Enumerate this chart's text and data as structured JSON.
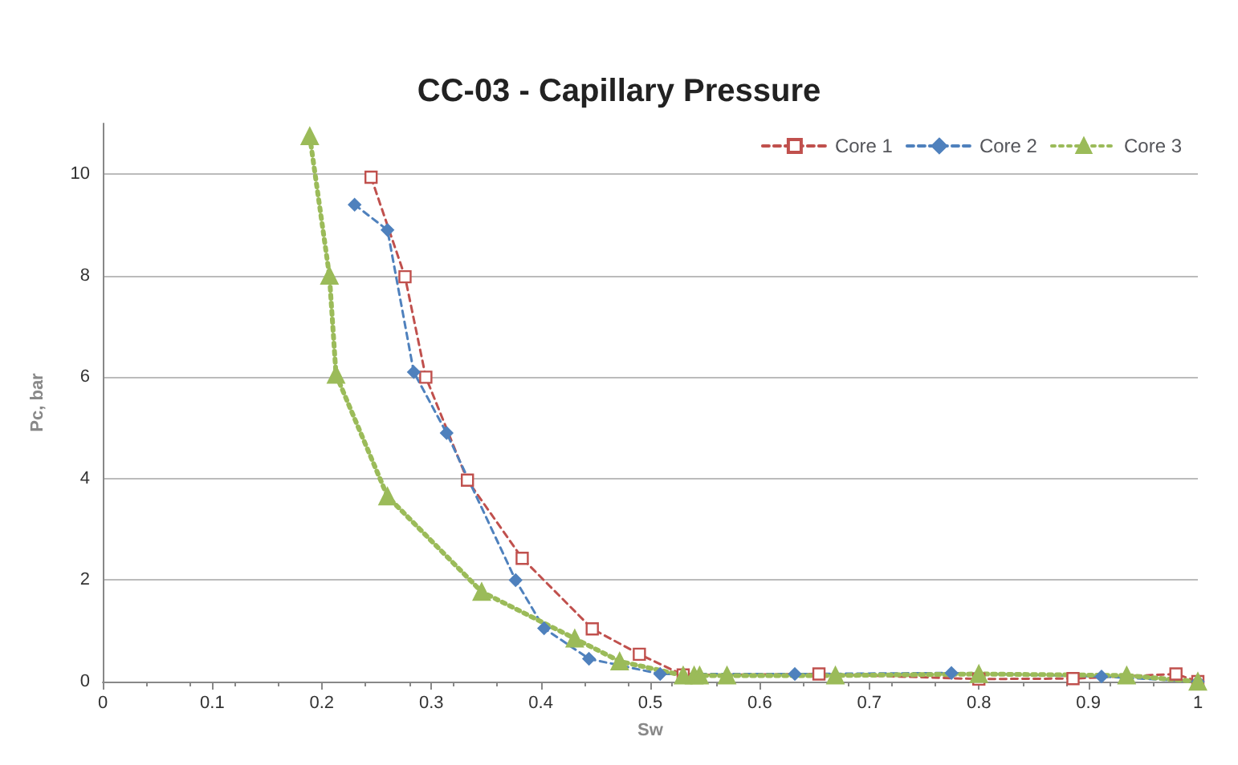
{
  "chart_data": {
    "type": "line",
    "title": "CC-03 - Capillary Pressure",
    "xlabel": "Sw",
    "ylabel": "Pc, bar",
    "xlim": [
      0,
      1
    ],
    "xticks": [
      0,
      0.1,
      0.2,
      0.3,
      0.4,
      0.5,
      0.6,
      0.7,
      0.8,
      0.9,
      1
    ],
    "ylim": [
      0,
      11
    ],
    "yticks": [
      0,
      2,
      4,
      6,
      8,
      10
    ],
    "grid": "y",
    "legend": "top right",
    "series": [
      {
        "name": "Core 1",
        "color": "#c0504d",
        "marker": "square",
        "line_style": "dashed",
        "x": [
          0.245,
          0.276,
          0.295,
          0.333,
          0.383,
          0.447,
          0.49,
          0.53,
          0.654,
          0.8,
          0.886,
          0.98,
          1
        ],
        "values": [
          9.94,
          7.98,
          6.0,
          3.97,
          2.43,
          1.04,
          0.54,
          0.13,
          0.15,
          0.05,
          0.06,
          0.15,
          0
        ]
      },
      {
        "name": "Core 2",
        "color": "#4f81bd",
        "marker": "diamond",
        "line_style": "dashed",
        "x": [
          0.23,
          0.26,
          0.284,
          0.314,
          0.377,
          0.403,
          0.444,
          0.509,
          0.632,
          0.775,
          0.912,
          1
        ],
        "values": [
          9.4,
          8.9,
          6.1,
          4.9,
          2.0,
          1.05,
          0.45,
          0.15,
          0.15,
          0.17,
          0.1,
          0
        ]
      },
      {
        "name": "Core 3",
        "color": "#9bbb59",
        "marker": "triangle",
        "line_style": "dotted",
        "x": [
          0.189,
          0.207,
          0.213,
          0.26,
          0.346,
          0.431,
          0.472,
          0.53,
          0.54,
          0.545,
          0.57,
          0.669,
          0.8,
          0.935,
          1
        ],
        "values": [
          10.75,
          8.0,
          6.05,
          3.65,
          1.77,
          0.85,
          0.4,
          0.12,
          0.12,
          0.12,
          0.12,
          0.12,
          0.15,
          0.12,
          0
        ]
      }
    ]
  }
}
